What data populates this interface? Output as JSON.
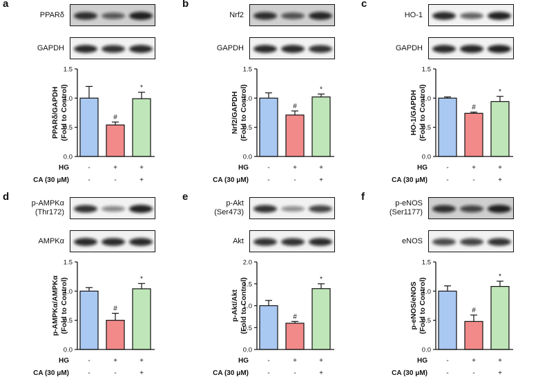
{
  "chart_data": [
    {
      "panel": "a",
      "type": "bar",
      "blots": [
        {
          "label": "PPARδ",
          "density": [
            0.85,
            0.55,
            0.95
          ],
          "dark": true
        },
        {
          "label": "GAPDH",
          "density": [
            0.9,
            0.85,
            0.9
          ],
          "dark": false
        }
      ],
      "ylabel": "PPARδ/GAPDH",
      "ylabel2": "(Fold to Control)",
      "ylim": [
        0,
        1.5
      ],
      "yticks": [
        "0.0",
        "0.5",
        "1.0",
        "1.5"
      ],
      "categories": [
        "Control",
        "HG",
        "HG + CA"
      ],
      "values": [
        1.0,
        0.54,
        0.99
      ],
      "errors": [
        0.2,
        0.05,
        0.11
      ],
      "significance": [
        "",
        "#",
        "*"
      ],
      "rows": [
        {
          "label": "HG",
          "signs": [
            "-",
            "+",
            "+"
          ]
        },
        {
          "label": "CA (30 μM)",
          "signs": [
            "-",
            "-",
            "+"
          ]
        }
      ],
      "colors": [
        "#a9c8f2",
        "#f28a8a",
        "#bfe6b8"
      ]
    },
    {
      "panel": "b",
      "type": "bar",
      "blots": [
        {
          "label": "Nrf2",
          "density": [
            0.85,
            0.6,
            0.9
          ],
          "dark": true
        },
        {
          "label": "GAPDH",
          "density": [
            0.9,
            0.9,
            0.85
          ],
          "dark": false
        }
      ],
      "ylabel": "Nrf2/GAPDH",
      "ylabel2": "(Fold to Control)",
      "ylim": [
        0,
        1.5
      ],
      "yticks": [
        "0.0",
        "0.5",
        "1.0",
        "1.5"
      ],
      "categories": [
        "Control",
        "HG",
        "HG + CA"
      ],
      "values": [
        1.0,
        0.71,
        1.02
      ],
      "errors": [
        0.09,
        0.07,
        0.05
      ],
      "significance": [
        "",
        "#",
        "*"
      ],
      "rows": [
        {
          "label": "HG",
          "signs": [
            "-",
            "+",
            "+"
          ]
        },
        {
          "label": "CA (30 μM)",
          "signs": [
            "-",
            "-",
            "+"
          ]
        }
      ],
      "colors": [
        "#a9c8f2",
        "#f28a8a",
        "#bfe6b8"
      ]
    },
    {
      "panel": "c",
      "type": "bar",
      "blots": [
        {
          "label": "HO-1",
          "density": [
            0.9,
            0.55,
            0.95
          ],
          "dark": false
        },
        {
          "label": "GAPDH",
          "density": [
            0.9,
            0.92,
            0.95
          ],
          "dark": false
        }
      ],
      "ylabel": "HO-1/GAPDH",
      "ylabel2": "(Fold to Control)",
      "ylim": [
        0,
        1.5
      ],
      "yticks": [
        "0.0",
        "0.5",
        "1.0",
        "1.5"
      ],
      "categories": [
        "Control",
        "HG",
        "HG + CA"
      ],
      "values": [
        1.0,
        0.74,
        0.94
      ],
      "errors": [
        0.02,
        0.02,
        0.09
      ],
      "significance": [
        "",
        "#",
        "*"
      ],
      "rows": [
        {
          "label": "HG",
          "signs": [
            "-",
            "+",
            "+"
          ]
        },
        {
          "label": "CA (30 μM)",
          "signs": [
            "-",
            "-",
            "+"
          ]
        }
      ],
      "colors": [
        "#a9c8f2",
        "#f28a8a",
        "#bfe6b8"
      ]
    },
    {
      "panel": "d",
      "type": "bar",
      "blots": [
        {
          "label": "p-AMPKα\n(Thr172)",
          "density": [
            0.85,
            0.35,
            0.95
          ],
          "dark": false
        },
        {
          "label": "AMPKα",
          "density": [
            0.9,
            0.88,
            0.9
          ],
          "dark": false
        }
      ],
      "ylabel": "p-AMPKα/AMPKα",
      "ylabel2": "(Fold to Control)",
      "ylim": [
        0,
        1.5
      ],
      "yticks": [
        "0.0",
        "0.5",
        "1.0",
        "1.5"
      ],
      "categories": [
        "Control",
        "HG",
        "HG + CA"
      ],
      "values": [
        1.0,
        0.5,
        1.04
      ],
      "errors": [
        0.06,
        0.12,
        0.09
      ],
      "significance": [
        "",
        "#",
        "*"
      ],
      "rows": [
        {
          "label": "HG",
          "signs": [
            "-",
            "+",
            "+"
          ]
        },
        {
          "label": "CA (30 μM)",
          "signs": [
            "-",
            "-",
            "+"
          ]
        }
      ],
      "colors": [
        "#a9c8f2",
        "#f28a8a",
        "#bfe6b8"
      ]
    },
    {
      "panel": "e",
      "type": "bar",
      "blots": [
        {
          "label": "p-Akt\n(Ser473)",
          "density": [
            0.85,
            0.3,
            0.75
          ],
          "dark": false
        },
        {
          "label": "Akt",
          "density": [
            0.85,
            0.85,
            0.88
          ],
          "dark": false
        }
      ],
      "ylabel": "p-Akt/Akt",
      "ylabel2": "(Fold to Control)",
      "ylim": [
        0,
        2.0
      ],
      "yticks": [
        "0.0",
        "0.5",
        "1.0",
        "1.5",
        "2.0"
      ],
      "categories": [
        "Control",
        "HG",
        "HG + CA"
      ],
      "values": [
        1.0,
        0.6,
        1.39
      ],
      "errors": [
        0.12,
        0.04,
        0.11
      ],
      "significance": [
        "",
        "#",
        "*"
      ],
      "rows": [
        {
          "label": "HG",
          "signs": [
            "-",
            "+",
            "+"
          ]
        },
        {
          "label": "CA (30 μM)",
          "signs": [
            "-",
            "-",
            "+"
          ]
        }
      ],
      "colors": [
        "#a9c8f2",
        "#f28a8a",
        "#bfe6b8"
      ]
    },
    {
      "panel": "f",
      "type": "bar",
      "blots": [
        {
          "label": "p-eNOS\n(Ser1177)",
          "density": [
            0.85,
            0.7,
            0.95
          ],
          "dark": true
        },
        {
          "label": "eNOS",
          "density": [
            0.7,
            0.75,
            0.85
          ],
          "dark": false
        }
      ],
      "ylabel": "p-eNOS/eNOS",
      "ylabel2": "(Fold to Control)",
      "ylim": [
        0,
        1.5
      ],
      "yticks": [
        "0.0",
        "0.5",
        "1.0",
        "1.5"
      ],
      "categories": [
        "Control",
        "HG",
        "HG + CA"
      ],
      "values": [
        1.0,
        0.48,
        1.08
      ],
      "errors": [
        0.09,
        0.11,
        0.09
      ],
      "significance": [
        "",
        "#",
        "*"
      ],
      "rows": [
        {
          "label": "HG",
          "signs": [
            "-",
            "+",
            "+"
          ]
        },
        {
          "label": "CA (30 μM)",
          "signs": [
            "-",
            "-",
            "+"
          ]
        }
      ],
      "colors": [
        "#a9c8f2",
        "#f28a8a",
        "#bfe6b8"
      ]
    }
  ]
}
